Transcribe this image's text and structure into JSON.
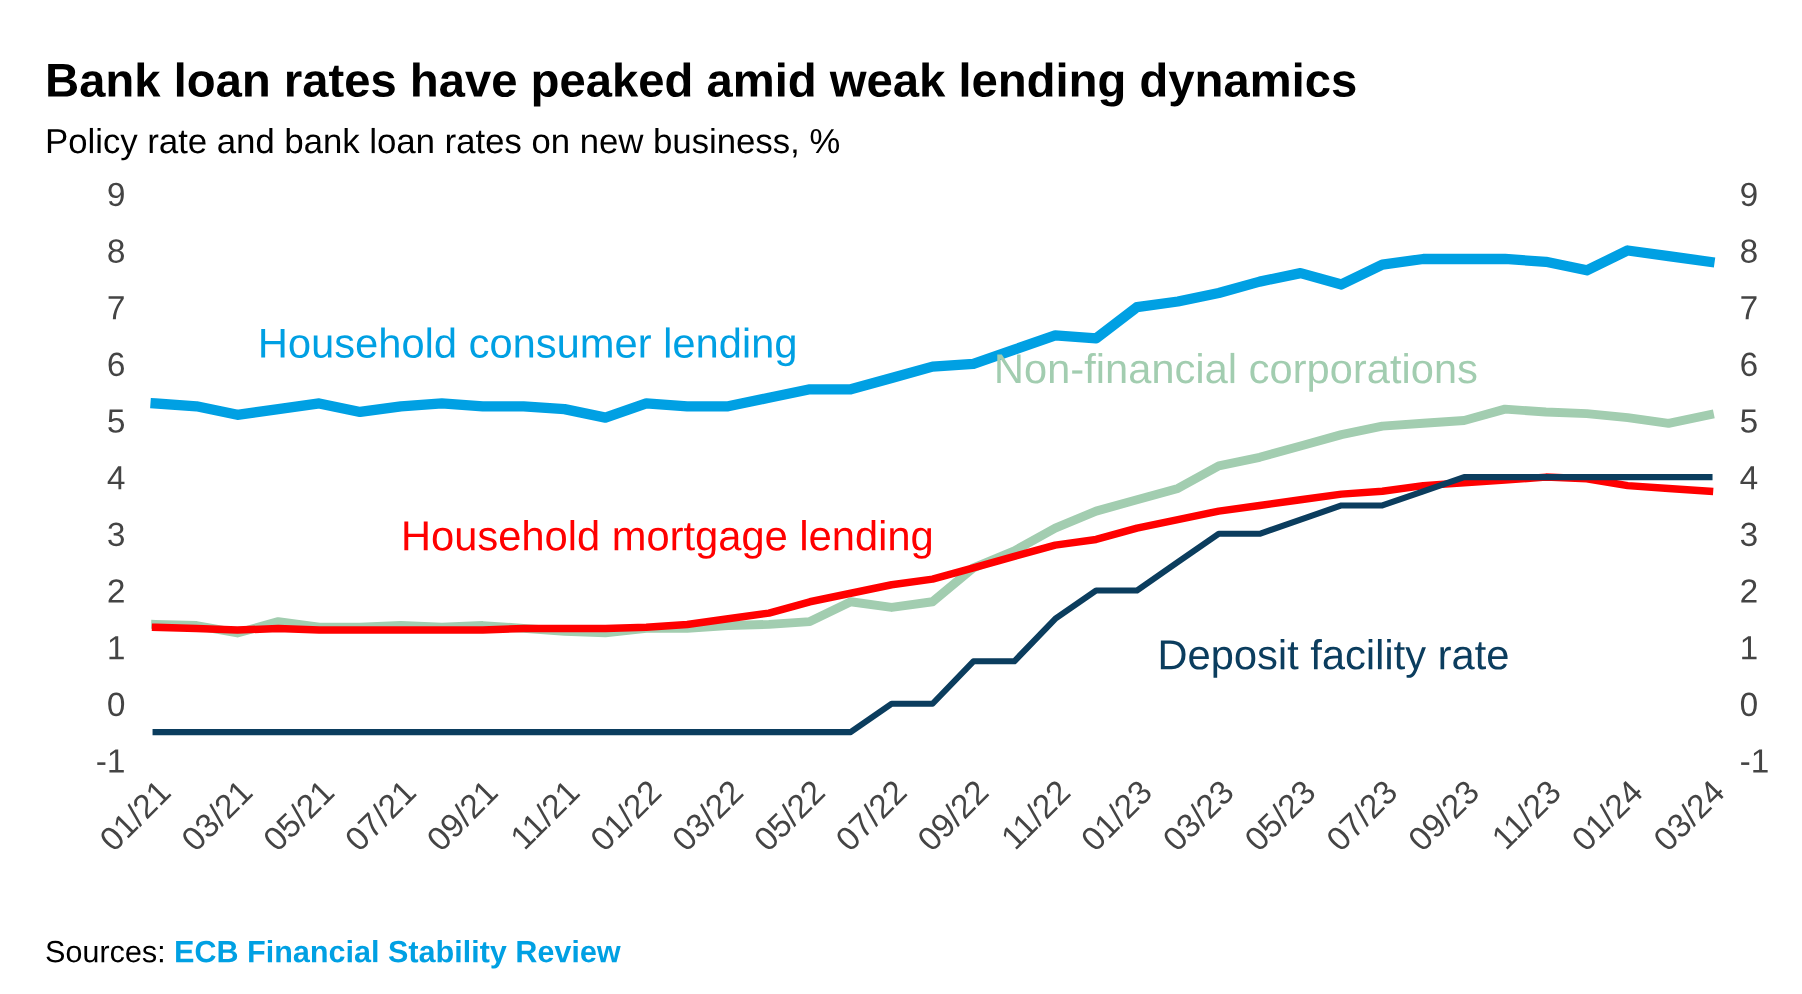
{
  "chart_data": {
    "type": "line",
    "title": "Bank loan rates have peaked amid weak lending dynamics",
    "subtitle": "Policy rate and bank loan rates on new business, %",
    "categories": [
      "01/21",
      null,
      "03/21",
      null,
      "05/21",
      null,
      "07/21",
      null,
      "09/21",
      null,
      "11/21",
      null,
      "01/22",
      null,
      "03/22",
      null,
      "05/22",
      null,
      "07/22",
      null,
      "09/22",
      null,
      "11/22",
      null,
      "01/23",
      null,
      "03/23",
      null,
      "05/23",
      null,
      "07/23",
      null,
      "09/23",
      null,
      "11/23",
      null,
      "01/24",
      null,
      "03/24"
    ],
    "series": [
      {
        "name": "Household consumer lending",
        "color": "#00a0e3",
        "values": [
          5.3,
          5.25,
          5.1,
          5.2,
          5.3,
          5.15,
          5.25,
          5.3,
          5.25,
          5.25,
          5.2,
          5.05,
          5.3,
          5.25,
          5.25,
          5.4,
          5.55,
          5.55,
          5.75,
          5.95,
          6.0,
          6.25,
          6.5,
          6.45,
          7.0,
          7.1,
          7.25,
          7.45,
          7.6,
          7.4,
          7.75,
          7.85,
          7.85,
          7.85,
          7.8,
          7.65,
          8.0,
          7.9,
          7.8
        ]
      },
      {
        "name": "Non-financial corporations",
        "color": "#a2cdb0",
        "values": [
          1.4,
          1.38,
          1.25,
          1.45,
          1.35,
          1.35,
          1.38,
          1.35,
          1.38,
          1.33,
          1.28,
          1.25,
          1.33,
          1.33,
          1.38,
          1.4,
          1.45,
          1.8,
          1.7,
          1.8,
          2.4,
          2.7,
          3.1,
          3.4,
          3.6,
          3.8,
          4.2,
          4.35,
          4.55,
          4.75,
          4.9,
          4.95,
          5.0,
          5.2,
          5.15,
          5.12,
          5.05,
          4.95,
          5.1
        ]
      },
      {
        "name": "Household mortgage lending",
        "color": "#ff0000",
        "values": [
          1.35,
          1.33,
          1.3,
          1.33,
          1.3,
          1.3,
          1.3,
          1.3,
          1.3,
          1.33,
          1.33,
          1.33,
          1.35,
          1.4,
          1.5,
          1.6,
          1.8,
          1.95,
          2.1,
          2.2,
          2.4,
          2.6,
          2.8,
          2.9,
          3.1,
          3.25,
          3.4,
          3.5,
          3.6,
          3.7,
          3.75,
          3.85,
          3.9,
          3.95,
          4.0,
          3.97,
          3.85,
          3.8,
          3.75
        ]
      },
      {
        "name": "Deposit facility rate",
        "color": "#0b3d5e",
        "values": [
          -0.5,
          -0.5,
          -0.5,
          -0.5,
          -0.5,
          -0.5,
          -0.5,
          -0.5,
          -0.5,
          -0.5,
          -0.5,
          -0.5,
          -0.5,
          -0.5,
          -0.5,
          -0.5,
          -0.5,
          -0.5,
          0,
          0,
          0.75,
          0.75,
          1.5,
          2.0,
          2.0,
          2.5,
          3.0,
          3.0,
          3.25,
          3.5,
          3.5,
          3.75,
          4.0,
          4.0,
          4.0,
          4.0,
          4.0,
          4.0,
          4.0
        ]
      }
    ],
    "ylim": [
      -1,
      9
    ],
    "yticks": [
      -1,
      0,
      1,
      2,
      3,
      4,
      5,
      6,
      7,
      8,
      9
    ],
    "y2lim": [
      -1,
      9
    ],
    "y2ticks": [
      -1,
      0,
      1,
      2,
      3,
      4,
      5,
      6,
      7,
      8,
      9
    ],
    "grid": false,
    "legend": false,
    "marker": "none",
    "line_style": "solid",
    "annotations": [
      "Sources:",
      "ECB Financial Stability Review"
    ]
  }
}
